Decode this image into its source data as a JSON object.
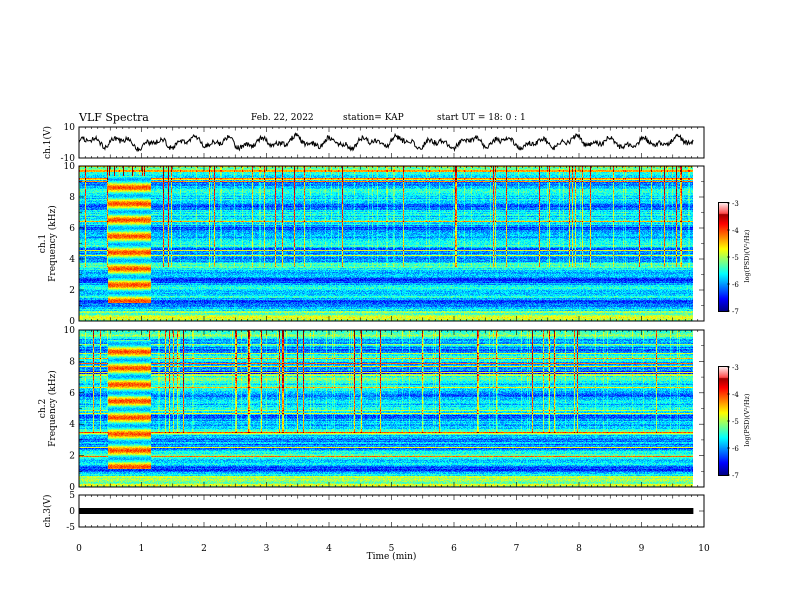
{
  "header": {
    "title": "VLF Spectra",
    "date": "Feb. 22, 2022",
    "station": "station= KAP",
    "start": "start  UT =  18: 0  : 1"
  },
  "chart_data": [
    {
      "type": "line",
      "title": "",
      "ylabel": "ch.1(V)",
      "ylim": [
        -10,
        10
      ],
      "ytick_labels": [
        "10",
        "-10"
      ],
      "xlim": [
        0,
        10
      ],
      "data_extent_x": [
        0,
        9.83
      ],
      "series": [
        {
          "name": "",
          "description": "ch.1 waveform, oscillating roughly between -6 and 6 V",
          "color": "#000000"
        }
      ]
    },
    {
      "type": "heatmap",
      "ylabel": "ch.1\nFrequency (kHz)",
      "ylim": [
        0,
        10
      ],
      "ytick_labels": [
        "0",
        "2",
        "4",
        "6",
        "8",
        "10"
      ],
      "xlim": [
        0,
        10
      ],
      "data_extent_x": [
        0,
        9.83
      ],
      "colorbar": {
        "label": "log(PSD)(V²/Hz)",
        "range": [
          -7,
          -3
        ],
        "tick_labels": [
          "-7",
          "-6",
          "-5",
          "-4",
          "-3"
        ]
      }
    },
    {
      "type": "heatmap",
      "ylabel": "ch.2\nFrequency (kHz)",
      "ylim": [
        0,
        10
      ],
      "ytick_labels": [
        "0",
        "2",
        "4",
        "6",
        "8",
        "10"
      ],
      "xlim": [
        0,
        10
      ],
      "data_extent_x": [
        0,
        9.83
      ],
      "colorbar": {
        "label": "log(PSD)(V²/Hz)",
        "range": [
          -7,
          -3
        ],
        "tick_labels": [
          "-7",
          "-6",
          "-5",
          "-4",
          "-3"
        ]
      }
    },
    {
      "type": "line",
      "ylabel": "ch.3(V)",
      "ylim": [
        -5,
        5
      ],
      "ytick_labels": [
        "5",
        "0",
        "-5"
      ],
      "xlim": [
        0,
        10
      ],
      "x_tick_labels": [
        "0",
        "1",
        "2",
        "3",
        "4",
        "5",
        "6",
        "7",
        "8",
        "9",
        "10"
      ],
      "xlabel": "Time  (min)",
      "series": [
        {
          "name": "",
          "description": "ch.3 flat band near 0 V",
          "x": [
            0,
            9.83
          ],
          "y": [
            0,
            0
          ],
          "color": "#000000"
        }
      ]
    }
  ]
}
